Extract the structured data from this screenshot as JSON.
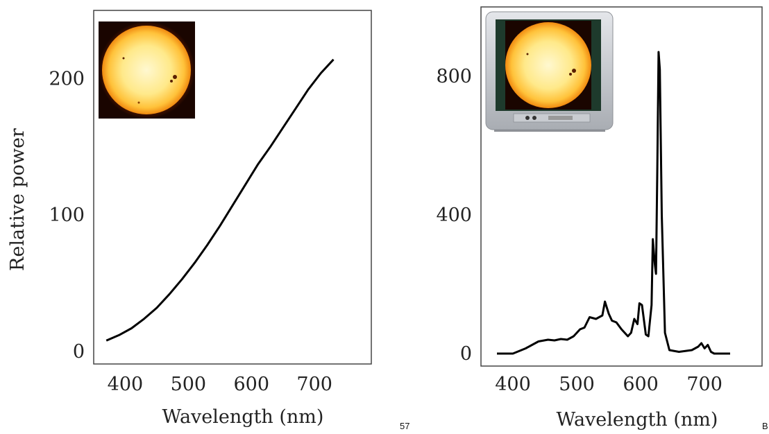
{
  "page": {
    "number": "57",
    "corner_letter": "B"
  },
  "chart_data": [
    {
      "type": "line",
      "title": "",
      "xlabel": "Wavelength (nm)",
      "ylabel": "Relative power",
      "xlim": [
        350,
        790
      ],
      "ylim": [
        0,
        250
      ],
      "xticks": [
        400,
        500,
        600,
        700
      ],
      "yticks": [
        0,
        100,
        200
      ],
      "grid": false,
      "inset_icon": "sun-photo",
      "series": [
        {
          "x": [
            370,
            390,
            410,
            430,
            450,
            470,
            490,
            510,
            530,
            550,
            570,
            590,
            610,
            630,
            650,
            670,
            690,
            710,
            730
          ],
          "y": [
            8,
            12,
            17,
            24,
            32,
            42,
            53,
            65,
            78,
            92,
            107,
            122,
            137,
            150,
            164,
            178,
            192,
            204,
            214
          ]
        }
      ]
    },
    {
      "type": "line",
      "title": "",
      "xlabel": "Wavelength (nm)",
      "ylabel": "",
      "xlim": [
        350,
        790
      ],
      "ylim": [
        0,
        1000
      ],
      "xticks": [
        400,
        500,
        600,
        700
      ],
      "yticks": [
        0,
        400,
        800
      ],
      "grid": false,
      "inset_icon": "television-with-sun-image",
      "series": [
        {
          "x": [
            375,
            400,
            420,
            440,
            455,
            465,
            475,
            485,
            495,
            505,
            512,
            520,
            530,
            540,
            544,
            550,
            555,
            562,
            570,
            580,
            585,
            590,
            595,
            598,
            602,
            608,
            612,
            617,
            619,
            622,
            624,
            626,
            628,
            630,
            633,
            638,
            645,
            660,
            680,
            690,
            695,
            700,
            705,
            710,
            715,
            740
          ],
          "y": [
            0,
            0,
            15,
            35,
            40,
            38,
            42,
            40,
            50,
            70,
            75,
            105,
            100,
            110,
            150,
            115,
            95,
            90,
            70,
            50,
            60,
            100,
            85,
            145,
            140,
            55,
            50,
            140,
            330,
            260,
            230,
            520,
            870,
            820,
            400,
            60,
            10,
            5,
            10,
            20,
            30,
            15,
            25,
            5,
            0,
            0
          ]
        }
      ]
    }
  ]
}
